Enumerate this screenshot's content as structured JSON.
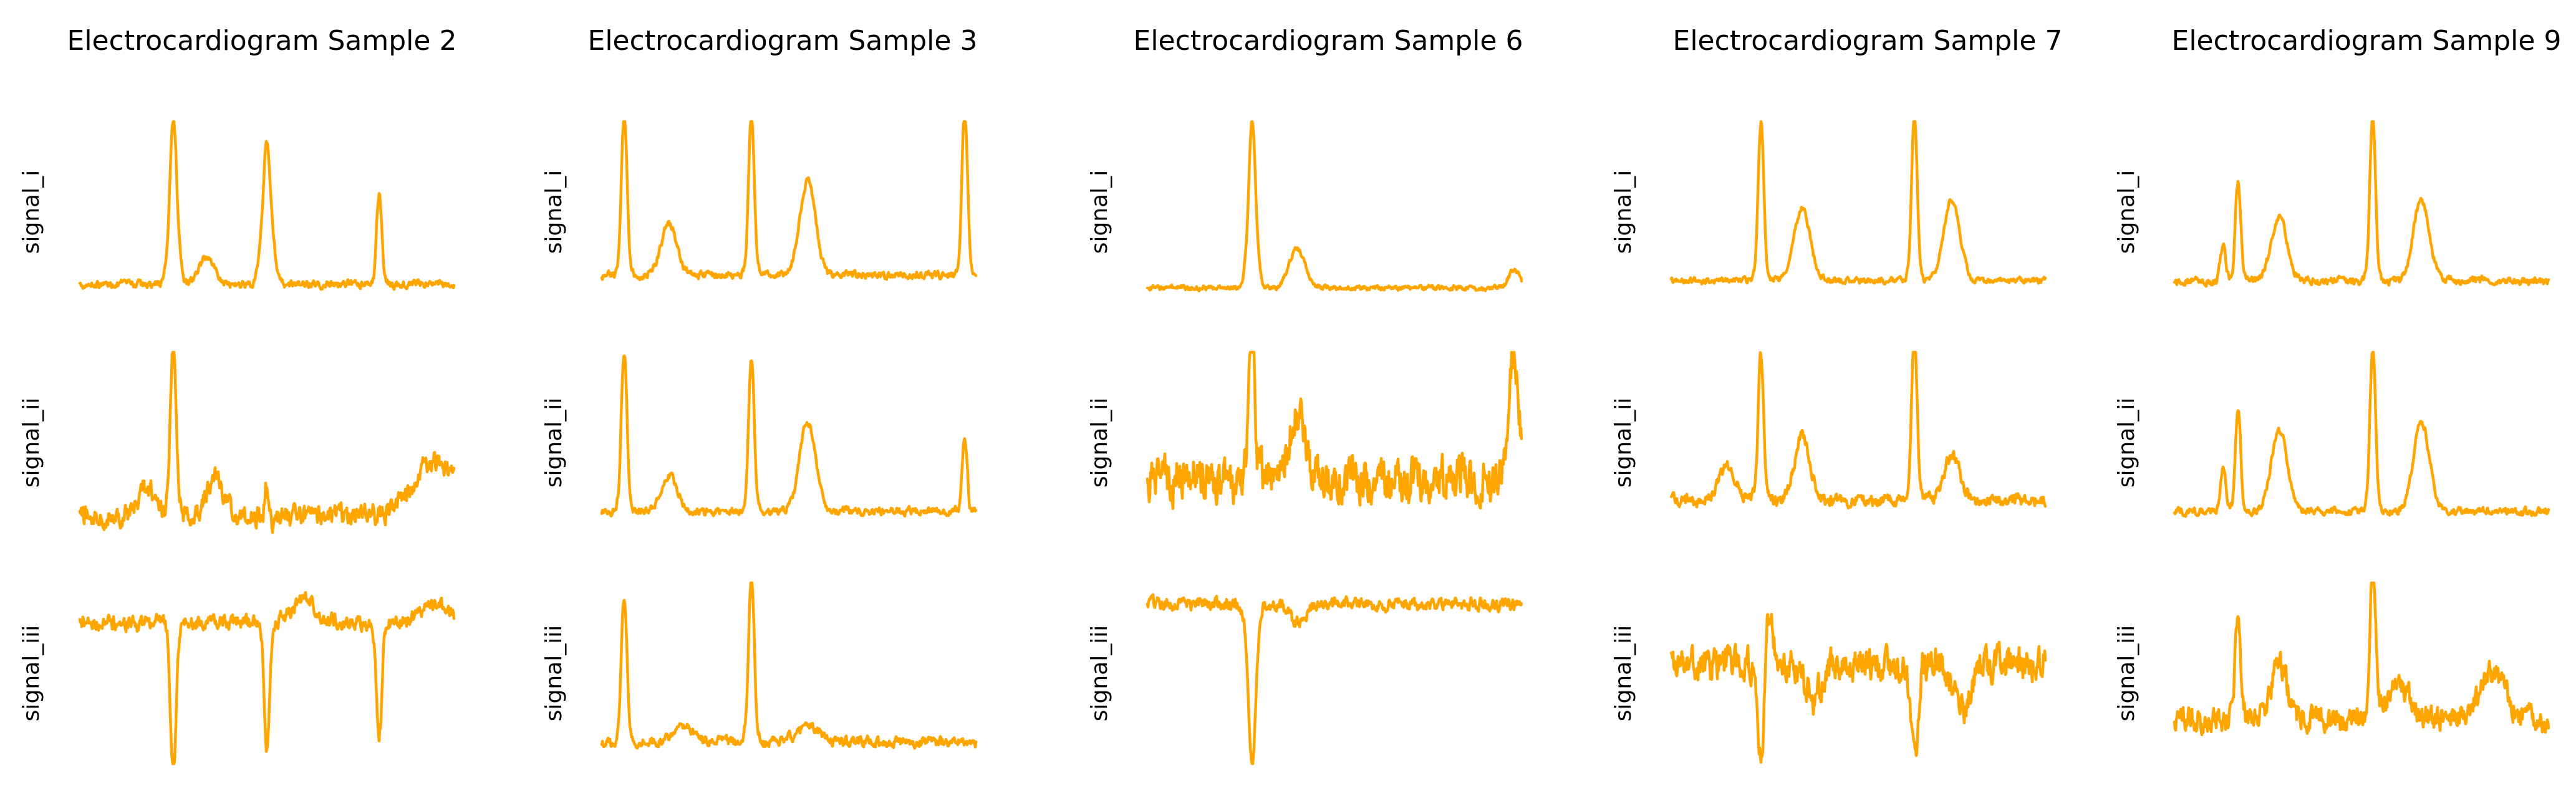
{
  "chart_data": [
    {
      "type": "line",
      "title": "Electrocardiogram Sample 2",
      "color": "#FFA500",
      "axes": "off",
      "series": [
        {
          "name": "signal_i",
          "style": "smooth",
          "noise": 0.06,
          "base": 0.1,
          "beats": [
            0.25,
            0.5,
            0.8
          ],
          "waves": [
            [
              0.0,
              -0.0,
              0.15,
              0.06
            ],
            [
              0.25,
              0.92,
              0.015,
              0
            ],
            [
              0.5,
              0.78,
              0.018,
              0
            ],
            [
              0.8,
              0.5,
              0.012,
              0
            ],
            [
              0.34,
              0.15,
              0.03,
              0
            ]
          ]
        },
        {
          "name": "signal_ii",
          "style": "noisy",
          "noise": 0.1,
          "base": 0.1,
          "beats": [
            0.25,
            0.5
          ],
          "waves": [
            [
              0.25,
              0.95,
              0.012,
              0
            ],
            [
              0.5,
              0.18,
              0.01,
              0
            ],
            [
              0.36,
              0.22,
              0.03,
              0
            ],
            [
              0.18,
              0.15,
              0.03,
              0
            ],
            [
              0.95,
              0.3,
              0.08,
              0
            ]
          ]
        },
        {
          "name": "signal_iii",
          "style": "inverted",
          "noise": 0.12,
          "base": 0.78,
          "beats": [
            0.25,
            0.5,
            0.8
          ],
          "waves": [
            [
              0.25,
              -0.82,
              0.012,
              0
            ],
            [
              0.5,
              -0.7,
              0.012,
              0
            ],
            [
              0.8,
              -0.62,
              0.012,
              0
            ],
            [
              0.6,
              0.12,
              0.05,
              0
            ],
            [
              0.95,
              0.1,
              0.05,
              0
            ]
          ]
        }
      ]
    },
    {
      "type": "line",
      "title": "Electrocardiogram Sample 3",
      "color": "#FFA500",
      "axes": "off",
      "series": [
        {
          "name": "signal_i",
          "style": "smooth",
          "noise": 0.06,
          "base": 0.15,
          "beats": [
            0.06,
            0.4,
            0.97
          ],
          "waves": [
            [
              0.06,
              0.88,
              0.012,
              0
            ],
            [
              0.4,
              0.88,
              0.012,
              0
            ],
            [
              0.97,
              0.9,
              0.012,
              0
            ],
            [
              0.18,
              0.28,
              0.03,
              0
            ],
            [
              0.55,
              0.52,
              0.03,
              0
            ]
          ]
        },
        {
          "name": "signal_ii",
          "style": "smooth",
          "noise": 0.06,
          "base": 0.12,
          "beats": [
            0.06,
            0.4,
            0.97
          ],
          "waves": [
            [
              0.06,
              0.88,
              0.012,
              0
            ],
            [
              0.4,
              0.85,
              0.012,
              0
            ],
            [
              0.97,
              0.4,
              0.012,
              0
            ],
            [
              0.18,
              0.2,
              0.03,
              0
            ],
            [
              0.55,
              0.5,
              0.03,
              0
            ]
          ]
        },
        {
          "name": "signal_iii",
          "style": "smooth",
          "noise": 0.08,
          "base": 0.12,
          "beats": [
            0.06,
            0.4
          ],
          "waves": [
            [
              0.06,
              0.8,
              0.012,
              0
            ],
            [
              0.4,
              0.9,
              0.012,
              0
            ],
            [
              0.22,
              0.08,
              0.04,
              0
            ],
            [
              0.55,
              0.1,
              0.04,
              0
            ]
          ]
        }
      ]
    },
    {
      "type": "line",
      "title": "Electrocardiogram Sample 6",
      "color": "#FFA500",
      "axes": "off",
      "series": [
        {
          "name": "signal_i",
          "style": "smooth",
          "noise": 0.04,
          "base": 0.08,
          "beats": [
            0.28
          ],
          "waves": [
            [
              0.28,
              0.92,
              0.015,
              0
            ],
            [
              0.4,
              0.22,
              0.03,
              0
            ],
            [
              0.98,
              0.1,
              0.02,
              0
            ]
          ]
        },
        {
          "name": "signal_ii",
          "style": "noisy",
          "noise": 0.22,
          "base": 0.3,
          "beats": [
            0.28
          ],
          "waves": [
            [
              0.28,
              0.85,
              0.012,
              0
            ],
            [
              0.4,
              0.35,
              0.03,
              0
            ],
            [
              0.98,
              0.7,
              0.02,
              0
            ]
          ]
        },
        {
          "name": "signal_iii",
          "style": "inverted",
          "noise": 0.1,
          "base": 0.88,
          "beats": [
            0.28
          ],
          "waves": [
            [
              0.28,
              -0.9,
              0.015,
              0
            ],
            [
              0.4,
              -0.1,
              0.03,
              0
            ]
          ]
        }
      ]
    },
    {
      "type": "line",
      "title": "Electrocardiogram Sample 7",
      "color": "#FFA500",
      "axes": "off",
      "series": [
        {
          "name": "signal_i",
          "style": "smooth",
          "noise": 0.05,
          "base": 0.12,
          "beats": [
            0.24,
            0.65
          ],
          "waves": [
            [
              0.24,
              0.88,
              0.012,
              0
            ],
            [
              0.65,
              0.9,
              0.012,
              0
            ],
            [
              0.35,
              0.4,
              0.03,
              0
            ],
            [
              0.75,
              0.45,
              0.03,
              0
            ]
          ]
        },
        {
          "name": "signal_ii",
          "style": "smooth",
          "noise": 0.1,
          "base": 0.18,
          "beats": [
            0.24,
            0.65
          ],
          "waves": [
            [
              0.24,
              0.8,
              0.012,
              0
            ],
            [
              0.65,
              0.9,
              0.012,
              0
            ],
            [
              0.35,
              0.35,
              0.03,
              0
            ],
            [
              0.75,
              0.25,
              0.03,
              0
            ],
            [
              0.15,
              0.2,
              0.03,
              0
            ]
          ]
        },
        {
          "name": "signal_iii",
          "style": "mixed",
          "noise": 0.16,
          "base": 0.55,
          "beats": [
            0.24,
            0.65
          ],
          "waves": [
            [
              0.24,
              -0.55,
              0.012,
              0
            ],
            [
              0.65,
              -0.55,
              0.012,
              0
            ],
            [
              0.26,
              0.3,
              0.015,
              0
            ],
            [
              0.38,
              -0.2,
              0.03,
              0
            ],
            [
              0.78,
              -0.25,
              0.03,
              0
            ]
          ]
        }
      ]
    },
    {
      "type": "line",
      "title": "Electrocardiogram Sample 9",
      "color": "#FFA500",
      "axes": "off",
      "series": [
        {
          "name": "signal_i",
          "style": "smooth",
          "noise": 0.06,
          "base": 0.12,
          "beats": [
            0.17,
            0.53
          ],
          "waves": [
            [
              0.17,
              0.55,
              0.012,
              0
            ],
            [
              0.53,
              0.92,
              0.012,
              0
            ],
            [
              0.28,
              0.35,
              0.03,
              0
            ],
            [
              0.66,
              0.45,
              0.03,
              0
            ],
            [
              0.13,
              0.2,
              0.01,
              0
            ]
          ]
        },
        {
          "name": "signal_ii",
          "style": "smooth",
          "noise": 0.06,
          "base": 0.12,
          "beats": [
            0.17,
            0.53
          ],
          "waves": [
            [
              0.17,
              0.55,
              0.012,
              0
            ],
            [
              0.53,
              0.9,
              0.012,
              0
            ],
            [
              0.28,
              0.45,
              0.03,
              0
            ],
            [
              0.66,
              0.5,
              0.03,
              0
            ],
            [
              0.13,
              0.25,
              0.01,
              0
            ]
          ]
        },
        {
          "name": "signal_iii",
          "style": "mixed",
          "noise": 0.12,
          "base": 0.25,
          "beats": [
            0.17,
            0.53
          ],
          "waves": [
            [
              0.17,
              0.58,
              0.012,
              0
            ],
            [
              0.53,
              0.88,
              0.012,
              0
            ],
            [
              0.28,
              0.3,
              0.03,
              0
            ],
            [
              0.6,
              0.2,
              0.04,
              0
            ],
            [
              0.85,
              0.25,
              0.05,
              0
            ]
          ]
        }
      ]
    }
  ]
}
